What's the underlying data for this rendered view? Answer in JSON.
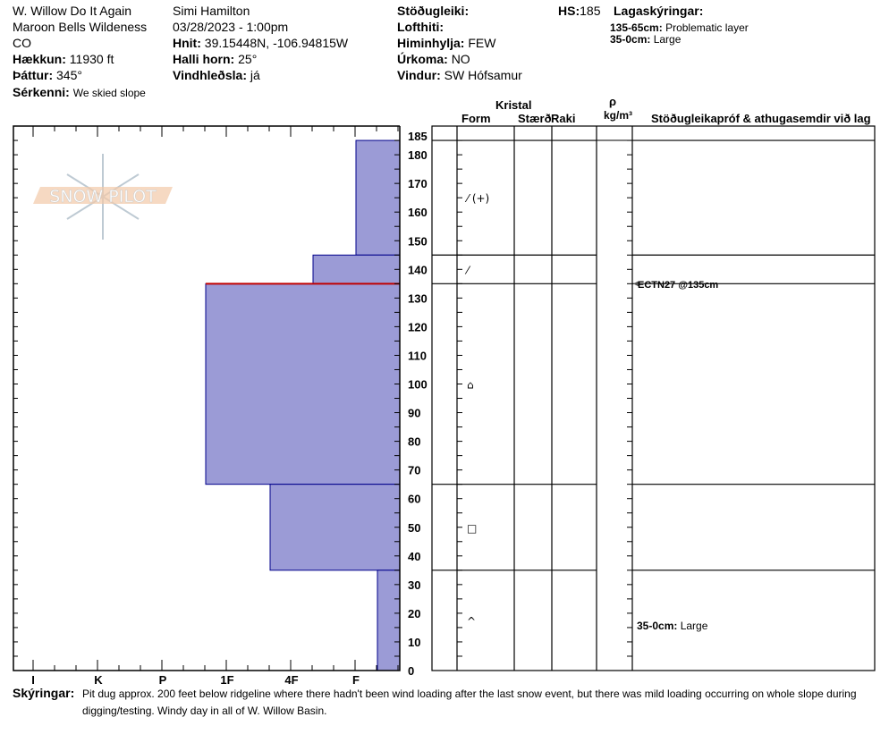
{
  "header": {
    "pit_name": "W. Willow Do It Again",
    "location": "Maroon Bells Wildeness",
    "state": "CO",
    "elevation_label": "Hækkun:",
    "elevation": "11930 ft",
    "aspect_label": "Þáttur:",
    "aspect": "345°",
    "features_label": "Sérkenni:",
    "features": "We skied slope",
    "observer": "Simi Hamilton",
    "datetime": "03/28/2023 - 1:00pm",
    "coords_label": "Hnit:",
    "coords": "39.15448N, -106.94815W",
    "slope_label": "Halli horn:",
    "slope": "25°",
    "windload_label": "Vindhleðsla:",
    "windload": "já",
    "stability_label": "Stöðugleiki:",
    "stability": "",
    "airtemp_label": "Lofthiti:",
    "airtemp": "",
    "sky_label": "Himinhylja:",
    "sky": "FEW",
    "precip_label": "Úrkoma:",
    "precip": "NO",
    "wind_label": "Vindur:",
    "wind": "SW Hófsamur",
    "hs_label": "HS:",
    "hs": "185",
    "layer_notes_label": "Lagaskýringar:",
    "layer_notes": [
      {
        "range": "135-65cm:",
        "text": "Problematic layer"
      },
      {
        "range": "35-0cm:",
        "text": "Large"
      }
    ]
  },
  "table": {
    "crystal": "Kristal",
    "form": "Form",
    "size": "Stærð",
    "moisture": "Raki",
    "rho": "ρ",
    "density_unit": "kg/m³",
    "comments": "Stöðugleikapróf & athugasemdir við lag"
  },
  "profile": {
    "hardness_labels": [
      "I",
      "K",
      "P",
      "1F",
      "4F",
      "F"
    ],
    "depth_ticks": [
      0,
      10,
      20,
      30,
      40,
      50,
      60,
      70,
      80,
      90,
      100,
      110,
      120,
      130,
      140,
      150,
      160,
      170,
      180,
      185
    ],
    "layers": [
      {
        "top": 185,
        "bottom": 145,
        "hardness": "F",
        "grain": "⁄ (+)"
      },
      {
        "top": 145,
        "bottom": 135,
        "hardness": "4F-",
        "grain": "⁄"
      },
      {
        "top": 135,
        "bottom": 65,
        "hardness": "1F+",
        "grain": "⌂"
      },
      {
        "top": 65,
        "bottom": 35,
        "hardness": "4F+",
        "grain": "□"
      },
      {
        "top": 35,
        "bottom": 0,
        "hardness": "F-",
        "grain": "^"
      }
    ],
    "problem_layer_depth": 135,
    "test": "ECTN27 @135cm",
    "layer_comment": {
      "range": "35-0cm:",
      "text": "Large"
    },
    "layer_color": "#9b9bd6",
    "edge_color": "#00008b",
    "problem_color": "#c00000"
  },
  "logo": "SNOW PILOT",
  "footer": {
    "label": "Skýringar:",
    "text1": "Pit dug approx. 200 feet below ridgeline where there hadn't been wind loading after the last snow event, but there was mild loading occurring on whole slope during",
    "text2": "digging/testing. Windy day in all of W. Willow Basin."
  }
}
